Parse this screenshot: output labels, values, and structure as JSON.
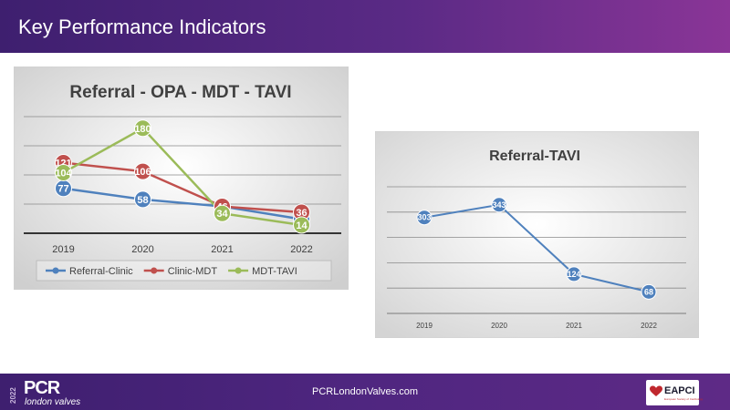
{
  "header": {
    "title": "Key Performance Indicators"
  },
  "footer": {
    "url": "PCRLondonValves.com",
    "pcr_logo": "PCR",
    "pcr_logo_sub": "london valves",
    "pcr_year": "2022",
    "eapci_logo": "EAPCI",
    "eapci_sub": "European Society of Cardiology"
  },
  "colors": {
    "header_bg": "#5a2a85",
    "referral_clinic": "#4f81bd",
    "clinic_mdt": "#c0504d",
    "mdt_tavi": "#9bbb59"
  },
  "chart_data": [
    {
      "type": "line",
      "title": "Referral - OPA - MDT - TAVI",
      "categories": [
        "2019",
        "2020",
        "2021",
        "2022"
      ],
      "series": [
        {
          "name": "Referral-Clinic",
          "color": "#4f81bd",
          "values": [
            77,
            58,
            46,
            24
          ]
        },
        {
          "name": "Clinic-MDT",
          "color": "#c0504d",
          "values": [
            121,
            106,
            46,
            36
          ]
        },
        {
          "name": "MDT-TAVI",
          "color": "#9bbb59",
          "values": [
            104,
            180,
            34,
            14
          ]
        }
      ],
      "ylim": [
        0,
        200
      ],
      "grid": true,
      "legend": "bottom"
    },
    {
      "type": "line",
      "title": "Referral-TAVI",
      "categories": [
        "2019",
        "2020",
        "2021",
        "2022"
      ],
      "series": [
        {
          "name": "",
          "color": "#4f81bd",
          "values": [
            303,
            343,
            124,
            68
          ]
        }
      ],
      "ylim": [
        0,
        400
      ],
      "grid": true,
      "legend": "none"
    }
  ]
}
